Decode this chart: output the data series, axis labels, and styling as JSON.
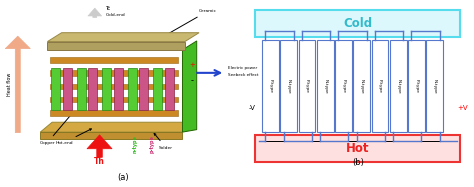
{
  "fig_width": 4.74,
  "fig_height": 1.87,
  "dpi": 100,
  "bg_color": "#ffffff",
  "panel_a_bg": "#eef5e0",
  "panel_b": {
    "cold_box_color": "#55ddee",
    "cold_fill": "#ddf8fc",
    "cold_text": "Cold",
    "cold_text_color": "#33bbcc",
    "hot_box_color": "#ee3333",
    "hot_fill": "#ffe0e0",
    "hot_text": "Hot",
    "hot_text_color": "#ee2222",
    "connector_color": "#5577cc",
    "pellet_edge": "#5577cc",
    "pellet_fill": "#ffffff",
    "n_pellets": 10,
    "pellet_labels": [
      "P-type",
      "N-type",
      "P-type",
      "N-type",
      "P-type",
      "N-type",
      "P-type",
      "N-type",
      "P-type",
      "N-type"
    ]
  }
}
